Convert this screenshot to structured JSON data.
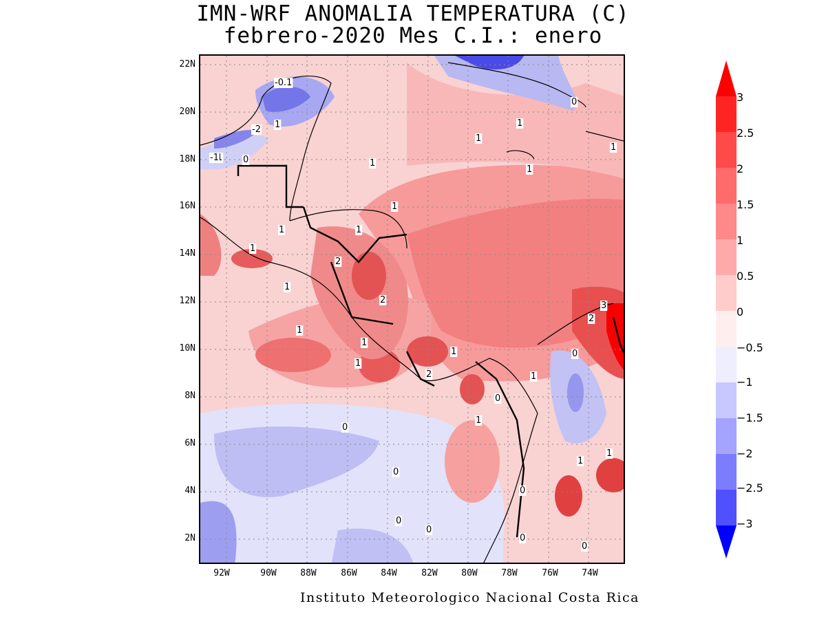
{
  "title": {
    "line1": "IMN-WRF  ANOMALIA TEMPERATURA (C)",
    "line2": "febrero-2020 Mes C.I.: enero"
  },
  "credit": "Instituto Meteorologico Nacional Costa Rica",
  "axes": {
    "lat_labels": [
      "22N",
      "20N",
      "18N",
      "16N",
      "14N",
      "12N",
      "10N",
      "8N",
      "6N",
      "4N",
      "2N"
    ],
    "lon_labels": [
      "92W",
      "90W",
      "88W",
      "86W",
      "84W",
      "82W",
      "80W",
      "78W",
      "76W",
      "74W"
    ]
  },
  "colorbar": {
    "levels": [
      "3",
      "2.5",
      "2",
      "1.5",
      "1",
      "0.5",
      "0",
      "−0.5",
      "−1",
      "−1.5",
      "−2",
      "−2.5",
      "−3"
    ],
    "colors": [
      "#ff0000",
      "#ff3333",
      "#ff5a5a",
      "#ff7a7a",
      "#ff9e9e",
      "#ffc4c4",
      "#ffe4e4",
      "#e8e8ff",
      "#c4c4ff",
      "#9e9eff",
      "#7a7aff",
      "#5a5aff",
      "#3333ff",
      "#0000ff"
    ]
  },
  "contour_labels": [
    "-0.1",
    "1",
    "-2",
    "1",
    "-1",
    "0",
    "1",
    "1",
    "1",
    "1",
    "1",
    "1",
    "2",
    "2",
    "3",
    "2",
    "1",
    "1",
    "1",
    "2",
    "1",
    "0",
    "1",
    "1",
    "0",
    "0",
    "0",
    "0",
    "0",
    "0",
    "0",
    "1",
    "1",
    "0",
    "1",
    "1",
    "1",
    "0",
    "1"
  ]
}
